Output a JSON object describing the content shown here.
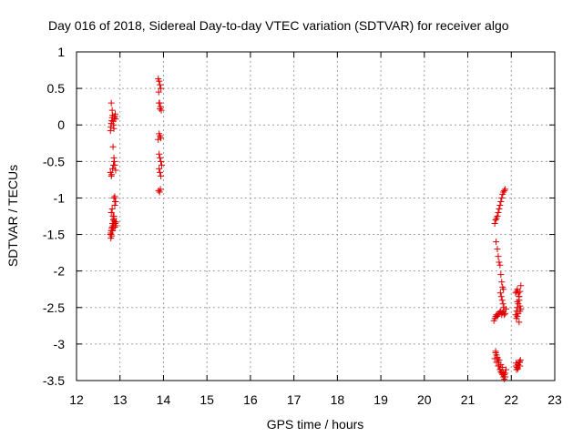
{
  "chart_data": {
    "type": "scatter",
    "title": "Day 016 of 2018, Sidereal Day-to-day VTEC variation (SDTVAR) for receiver algo",
    "xlabel": "GPS time / hours",
    "ylabel": "SDTVAR / TECUs",
    "xlim": [
      12,
      23
    ],
    "ylim": [
      -3.5,
      1
    ],
    "xticks": [
      "12",
      "13",
      "14",
      "15",
      "16",
      "17",
      "18",
      "19",
      "20",
      "21",
      "22",
      "23"
    ],
    "yticks": [
      "1",
      "0.5",
      "0",
      "-0.5",
      "-1",
      "-1.5",
      "-2",
      "-2.5",
      "-3",
      "-3.5"
    ],
    "grid": true,
    "marker": "+",
    "color": "#e00000",
    "series": [
      {
        "name": "SDTVAR",
        "x": [
          12.78,
          12.79,
          12.8,
          12.81,
          12.82,
          12.83,
          12.84,
          12.85,
          12.86,
          12.87,
          12.88,
          12.89,
          12.9,
          12.8,
          12.82,
          12.84,
          12.86,
          12.88,
          12.78,
          12.8,
          12.81,
          12.83,
          12.85,
          12.87,
          12.9,
          12.86,
          12.88,
          12.89,
          12.78,
          12.79,
          12.8,
          12.81,
          12.82,
          12.83,
          12.84,
          12.85,
          12.86,
          12.87,
          12.88,
          12.89,
          12.9,
          12.91,
          12.8,
          12.82,
          12.84,
          12.86,
          12.88,
          12.9,
          12.79,
          12.81,
          12.83,
          12.85,
          13.88,
          13.9,
          13.92,
          13.94,
          13.89,
          13.91,
          13.93,
          13.95,
          13.9,
          13.92,
          13.94,
          13.88,
          13.9,
          13.92,
          13.94,
          13.96,
          13.9,
          13.92,
          13.94,
          13.89,
          13.91,
          13.93,
          13.9,
          13.92,
          21.62,
          21.64,
          21.66,
          21.68,
          21.7,
          21.72,
          21.74,
          21.76,
          21.78,
          21.8,
          21.82,
          21.84,
          21.86,
          21.65,
          21.68,
          21.7,
          21.72,
          21.74,
          21.76,
          21.78,
          21.8,
          21.82,
          21.75,
          21.77,
          21.79,
          21.81,
          21.83,
          21.6,
          21.62,
          21.64,
          21.66,
          21.68,
          21.7,
          21.72,
          21.74,
          21.76,
          21.78,
          21.8,
          21.82,
          21.84,
          21.86,
          21.88,
          21.64,
          21.66,
          21.68,
          21.7,
          21.72,
          21.74,
          21.76,
          21.78,
          21.8,
          21.82,
          21.84,
          21.86,
          21.88,
          21.62,
          21.66,
          21.7,
          21.74,
          21.78,
          21.82,
          21.86,
          21.64,
          21.68,
          21.72,
          21.76,
          21.8,
          21.84,
          22.1,
          22.12,
          22.14,
          22.16,
          22.18,
          22.2,
          22.22,
          22.1,
          22.12,
          22.14,
          22.16,
          22.18,
          22.2,
          22.22,
          22.12,
          22.14,
          22.16,
          22.18,
          22.2,
          22.11,
          22.15,
          22.19,
          22.13,
          22.17,
          22.21,
          22.12,
          22.16,
          22.2,
          22.11,
          22.15,
          22.19,
          22.14,
          22.18
        ],
        "y": [
          -0.08,
          -0.03,
          0.02,
          0.06,
          0.1,
          0.13,
          0.05,
          0.0,
          -0.05,
          0.1,
          0.12,
          0.15,
          0.08,
          0.3,
          0.2,
          -0.3,
          -0.45,
          -0.55,
          -0.65,
          -0.7,
          -0.68,
          -0.6,
          -0.55,
          -0.5,
          -0.62,
          -1.0,
          -0.98,
          -1.05,
          -1.5,
          -1.48,
          -1.45,
          -1.42,
          -1.4,
          -1.35,
          -1.38,
          -1.3,
          -1.25,
          -1.32,
          -1.4,
          -1.35,
          -1.38,
          -1.33,
          -1.2,
          -1.15,
          -1.25,
          -1.28,
          -1.1,
          -1.05,
          -1.55,
          -1.52,
          -1.45,
          -1.4,
          0.63,
          0.6,
          0.55,
          0.5,
          0.45,
          0.3,
          0.25,
          0.2,
          -0.12,
          -0.15,
          -0.18,
          -0.2,
          -0.4,
          -0.45,
          -0.5,
          -0.55,
          -0.6,
          -0.65,
          -0.7,
          -0.9,
          -0.92,
          -0.88,
          0.3,
          0.22,
          -1.35,
          -1.3,
          -1.28,
          -1.25,
          -1.2,
          -1.15,
          -1.1,
          -1.05,
          -1.0,
          -0.95,
          -0.92,
          -0.9,
          -0.88,
          -1.6,
          -1.7,
          -1.8,
          -1.88,
          -1.92,
          -2.05,
          -2.15,
          -2.22,
          -2.25,
          -2.3,
          -2.35,
          -2.4,
          -2.45,
          -2.5,
          -2.68,
          -2.65,
          -2.62,
          -2.6,
          -2.62,
          -2.6,
          -2.58,
          -2.56,
          -2.55,
          -2.6,
          -2.57,
          -2.55,
          -2.6,
          -2.58,
          -2.52,
          -3.1,
          -3.15,
          -3.2,
          -3.25,
          -3.3,
          -3.35,
          -3.38,
          -3.4,
          -3.42,
          -3.45,
          -3.48,
          -3.4,
          -3.35,
          -3.2,
          -3.25,
          -3.3,
          -3.35,
          -3.38,
          -3.4,
          -3.45,
          -3.12,
          -3.18,
          -3.22,
          -3.28,
          -3.32,
          -3.42,
          -2.3,
          -2.28,
          -2.25,
          -2.3,
          -2.35,
          -2.28,
          -2.2,
          -2.6,
          -2.55,
          -2.5,
          -2.45,
          -2.4,
          -2.48,
          -2.52,
          -2.65,
          -2.62,
          -2.58,
          -2.7,
          -2.55,
          -3.3,
          -3.28,
          -3.25,
          -3.32,
          -3.3,
          -3.22,
          -3.35,
          -3.28,
          -3.3,
          -3.26,
          -3.34,
          -3.24,
          -2.42,
          -2.35
        ]
      }
    ]
  }
}
